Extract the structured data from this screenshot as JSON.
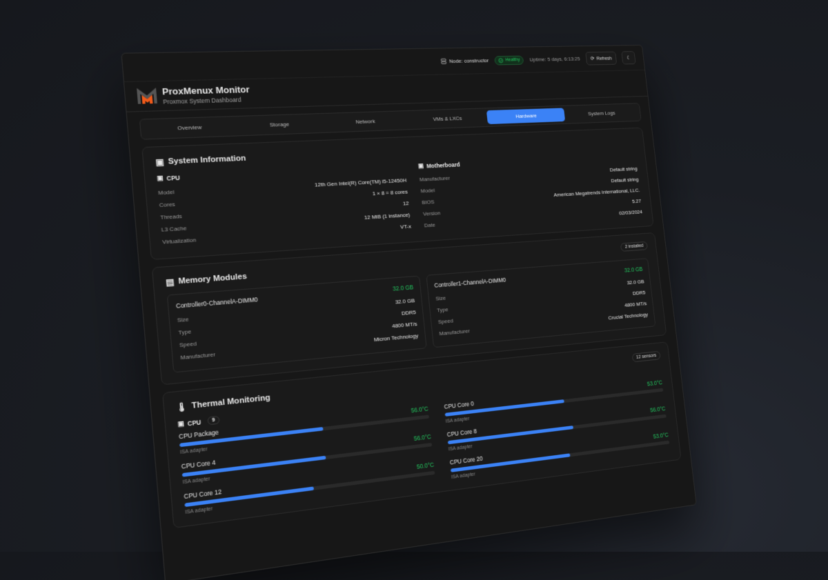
{
  "header": {
    "node": "Node: constructor",
    "health": "Healthy",
    "uptime": "Uptime: 5 days, 6:13:25",
    "refresh": "Refresh",
    "title": "ProxMenux Monitor",
    "subtitle": "Proxmox System Dashboard"
  },
  "tabs": [
    {
      "label": "Overview"
    },
    {
      "label": "Storage"
    },
    {
      "label": "Network"
    },
    {
      "label": "VMs & LXCs"
    },
    {
      "label": "Hardware",
      "active": true
    },
    {
      "label": "System Logs"
    }
  ],
  "system": {
    "title": "System Information",
    "cpu": {
      "title": "CPU",
      "rows": [
        {
          "k": "Model",
          "v": "12th Gen Intel(R) Core(TM) i5-12450H"
        },
        {
          "k": "Cores",
          "v": "1 × 8 = 8 cores"
        },
        {
          "k": "Threads",
          "v": "12"
        },
        {
          "k": "L3 Cache",
          "v": "12 MiB (1 instance)"
        },
        {
          "k": "Virtualization",
          "v": "VT-x"
        }
      ]
    },
    "motherboard": {
      "title": "Motherboard",
      "rows": [
        {
          "k": "Manufacturer",
          "v": "Default string"
        },
        {
          "k": "Model",
          "v": "Default string"
        },
        {
          "k": "BIOS",
          "v": "American Megatrends International, LLC."
        },
        {
          "k": "Version",
          "v": "5.27"
        },
        {
          "k": "Date",
          "v": "02/03/2024"
        }
      ]
    }
  },
  "memory": {
    "title": "Memory Modules",
    "badge": "2 installed",
    "labels": [
      "Size",
      "Type",
      "Speed",
      "Manufacturer"
    ],
    "modules": [
      {
        "name": "Controller0-ChannelA-DIMM0",
        "size": "32.0 GB",
        "type": "DDR5",
        "speed": "4800 MT/s",
        "manufacturer": "Micron Technology"
      },
      {
        "name": "Controller1-ChannelA-DIMM0",
        "size": "32.0 GB",
        "type": "DDR5",
        "speed": "4800 MT/s",
        "manufacturer": "Crucial Technology"
      }
    ]
  },
  "thermal": {
    "title": "Thermal Monitoring",
    "badge": "12 sensors",
    "group": "CPU",
    "group_count": "9",
    "sensors": [
      {
        "name": "CPU Package",
        "temp": "56.0°C",
        "level": 0.56,
        "adapter": "ISA adapter"
      },
      {
        "name": "CPU Core 0",
        "temp": "53.0°C",
        "level": 0.53,
        "adapter": "ISA adapter"
      },
      {
        "name": "CPU Core 4",
        "temp": "56.0°C",
        "level": 0.56,
        "adapter": "ISA adapter"
      },
      {
        "name": "CPU Core 8",
        "temp": "56.0°C",
        "level": 0.56,
        "adapter": "ISA adapter"
      },
      {
        "name": "CPU Core 12",
        "temp": "50.0°C",
        "level": 0.5,
        "adapter": "ISA adapter"
      },
      {
        "name": "CPU Core 20",
        "temp": "53.0°C",
        "level": 0.53,
        "adapter": "ISA adapter"
      }
    ]
  },
  "colors": {
    "accent": "#3b82f6",
    "ok": "#22c55e",
    "logo_orange": "#f05a1a"
  }
}
